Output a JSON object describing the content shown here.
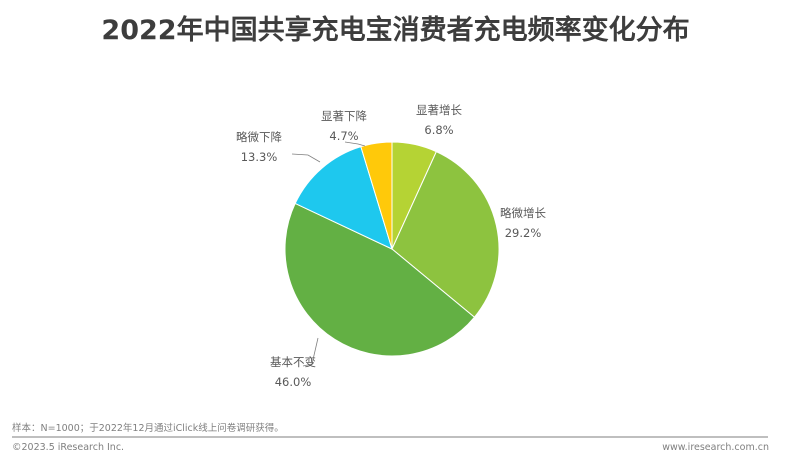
{
  "title": "2022年中国共享充电宝消费者充电频率变化分布",
  "footer": {
    "note": "样本：N=1000；于2022年12月通过iClick线上问卷调研获得。",
    "copyright": "©2023.5 iResearch Inc.",
    "website": "www.iresearch.com.cn"
  },
  "labels": [
    {
      "name": "显著增长",
      "pct": "6.8%"
    },
    {
      "name": "略微增长",
      "pct": "29.2%"
    },
    {
      "name": "基本不变",
      "pct": "46.0%"
    },
    {
      "name": "略微下降",
      "pct": "13.3%"
    },
    {
      "name": "显著下降",
      "pct": "4.7%"
    }
  ],
  "chart_data": {
    "type": "pie",
    "title": "2022年中国共享充电宝消费者充电频率变化分布",
    "categories": [
      "显著增长",
      "略微增长",
      "基本不变",
      "略微下降",
      "显著下降"
    ],
    "values": [
      6.8,
      29.2,
      46.0,
      13.3,
      4.7
    ],
    "unit": "%",
    "colors": [
      "#b5d334",
      "#8dc33f",
      "#63b044",
      "#1ec8ee",
      "#ffc90a"
    ],
    "start_angle": "12 o'clock, clockwise",
    "legend": "none (direct labels)"
  }
}
